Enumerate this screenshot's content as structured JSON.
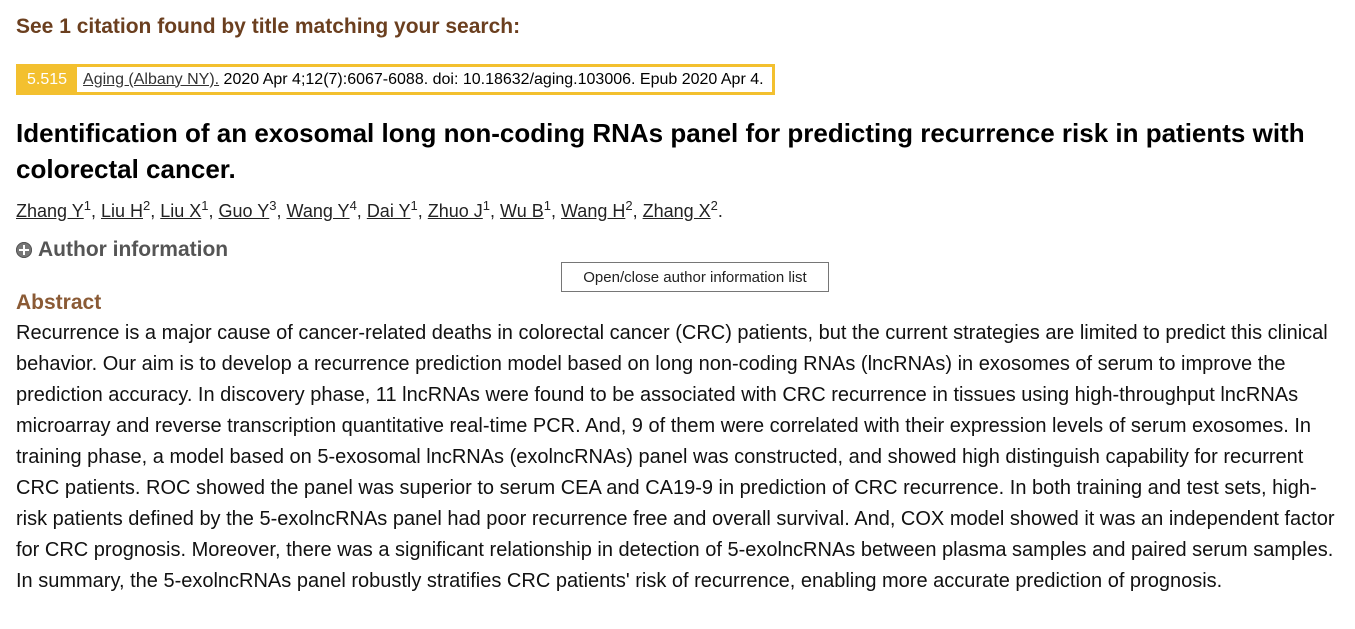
{
  "search_result_heading": "See 1 citation found by title matching your search:",
  "citation": {
    "impact_factor": "5.515",
    "journal": "Aging (Albany NY).",
    "details": " 2020 Apr 4;12(7):6067-6088. doi: 10.18632/aging.103006. Epub 2020 Apr 4."
  },
  "article_title": "Identification of an exosomal long non-coding RNAs panel for predicting recurrence risk in patients with colorectal cancer.",
  "authors": [
    {
      "name": "Zhang Y",
      "aff": "1"
    },
    {
      "name": "Liu H",
      "aff": "2"
    },
    {
      "name": "Liu X",
      "aff": "1"
    },
    {
      "name": "Guo Y",
      "aff": "3"
    },
    {
      "name": "Wang Y",
      "aff": "4"
    },
    {
      "name": "Dai Y",
      "aff": "1"
    },
    {
      "name": "Zhuo J",
      "aff": "1"
    },
    {
      "name": "Wu B",
      "aff": "1"
    },
    {
      "name": "Wang H",
      "aff": "2"
    },
    {
      "name": "Zhang X",
      "aff": "2"
    }
  ],
  "author_info_label": "Author information",
  "tooltip": "Open/close author information list",
  "abstract_heading": "Abstract",
  "abstract_text": "Recurrence is a major cause of cancer-related deaths in colorectal cancer (CRC) patients, but the current strategies are limited to predict this clinical behavior. Our aim is to develop a recurrence prediction model based on long non-coding RNAs (lncRNAs) in exosomes of serum to improve the prediction accuracy. In discovery phase, 11 lncRNAs were found to be associated with CRC recurrence in tissues using high-throughput lncRNAs microarray and reverse transcription quantitative real-time PCR. And, 9 of them were correlated with their expression levels of serum exosomes. In training phase, a model based on 5-exosomal lncRNAs (exolncRNAs) panel was constructed, and showed high distinguish capability for recurrent CRC patients. ROC showed the panel was superior to serum CEA and CA19-9 in prediction of CRC recurrence. In both training and test sets, high-risk patients defined by the 5-exolncRNAs panel had poor recurrence free and overall survival. And, COX model showed it was an independent factor for CRC prognosis. Moreover, there was a significant relationship in detection of 5-exolncRNAs between plasma samples and paired serum samples. In summary, the 5-exolncRNAs panel robustly stratifies CRC patients' risk of recurrence, enabling more accurate prediction of prognosis."
}
